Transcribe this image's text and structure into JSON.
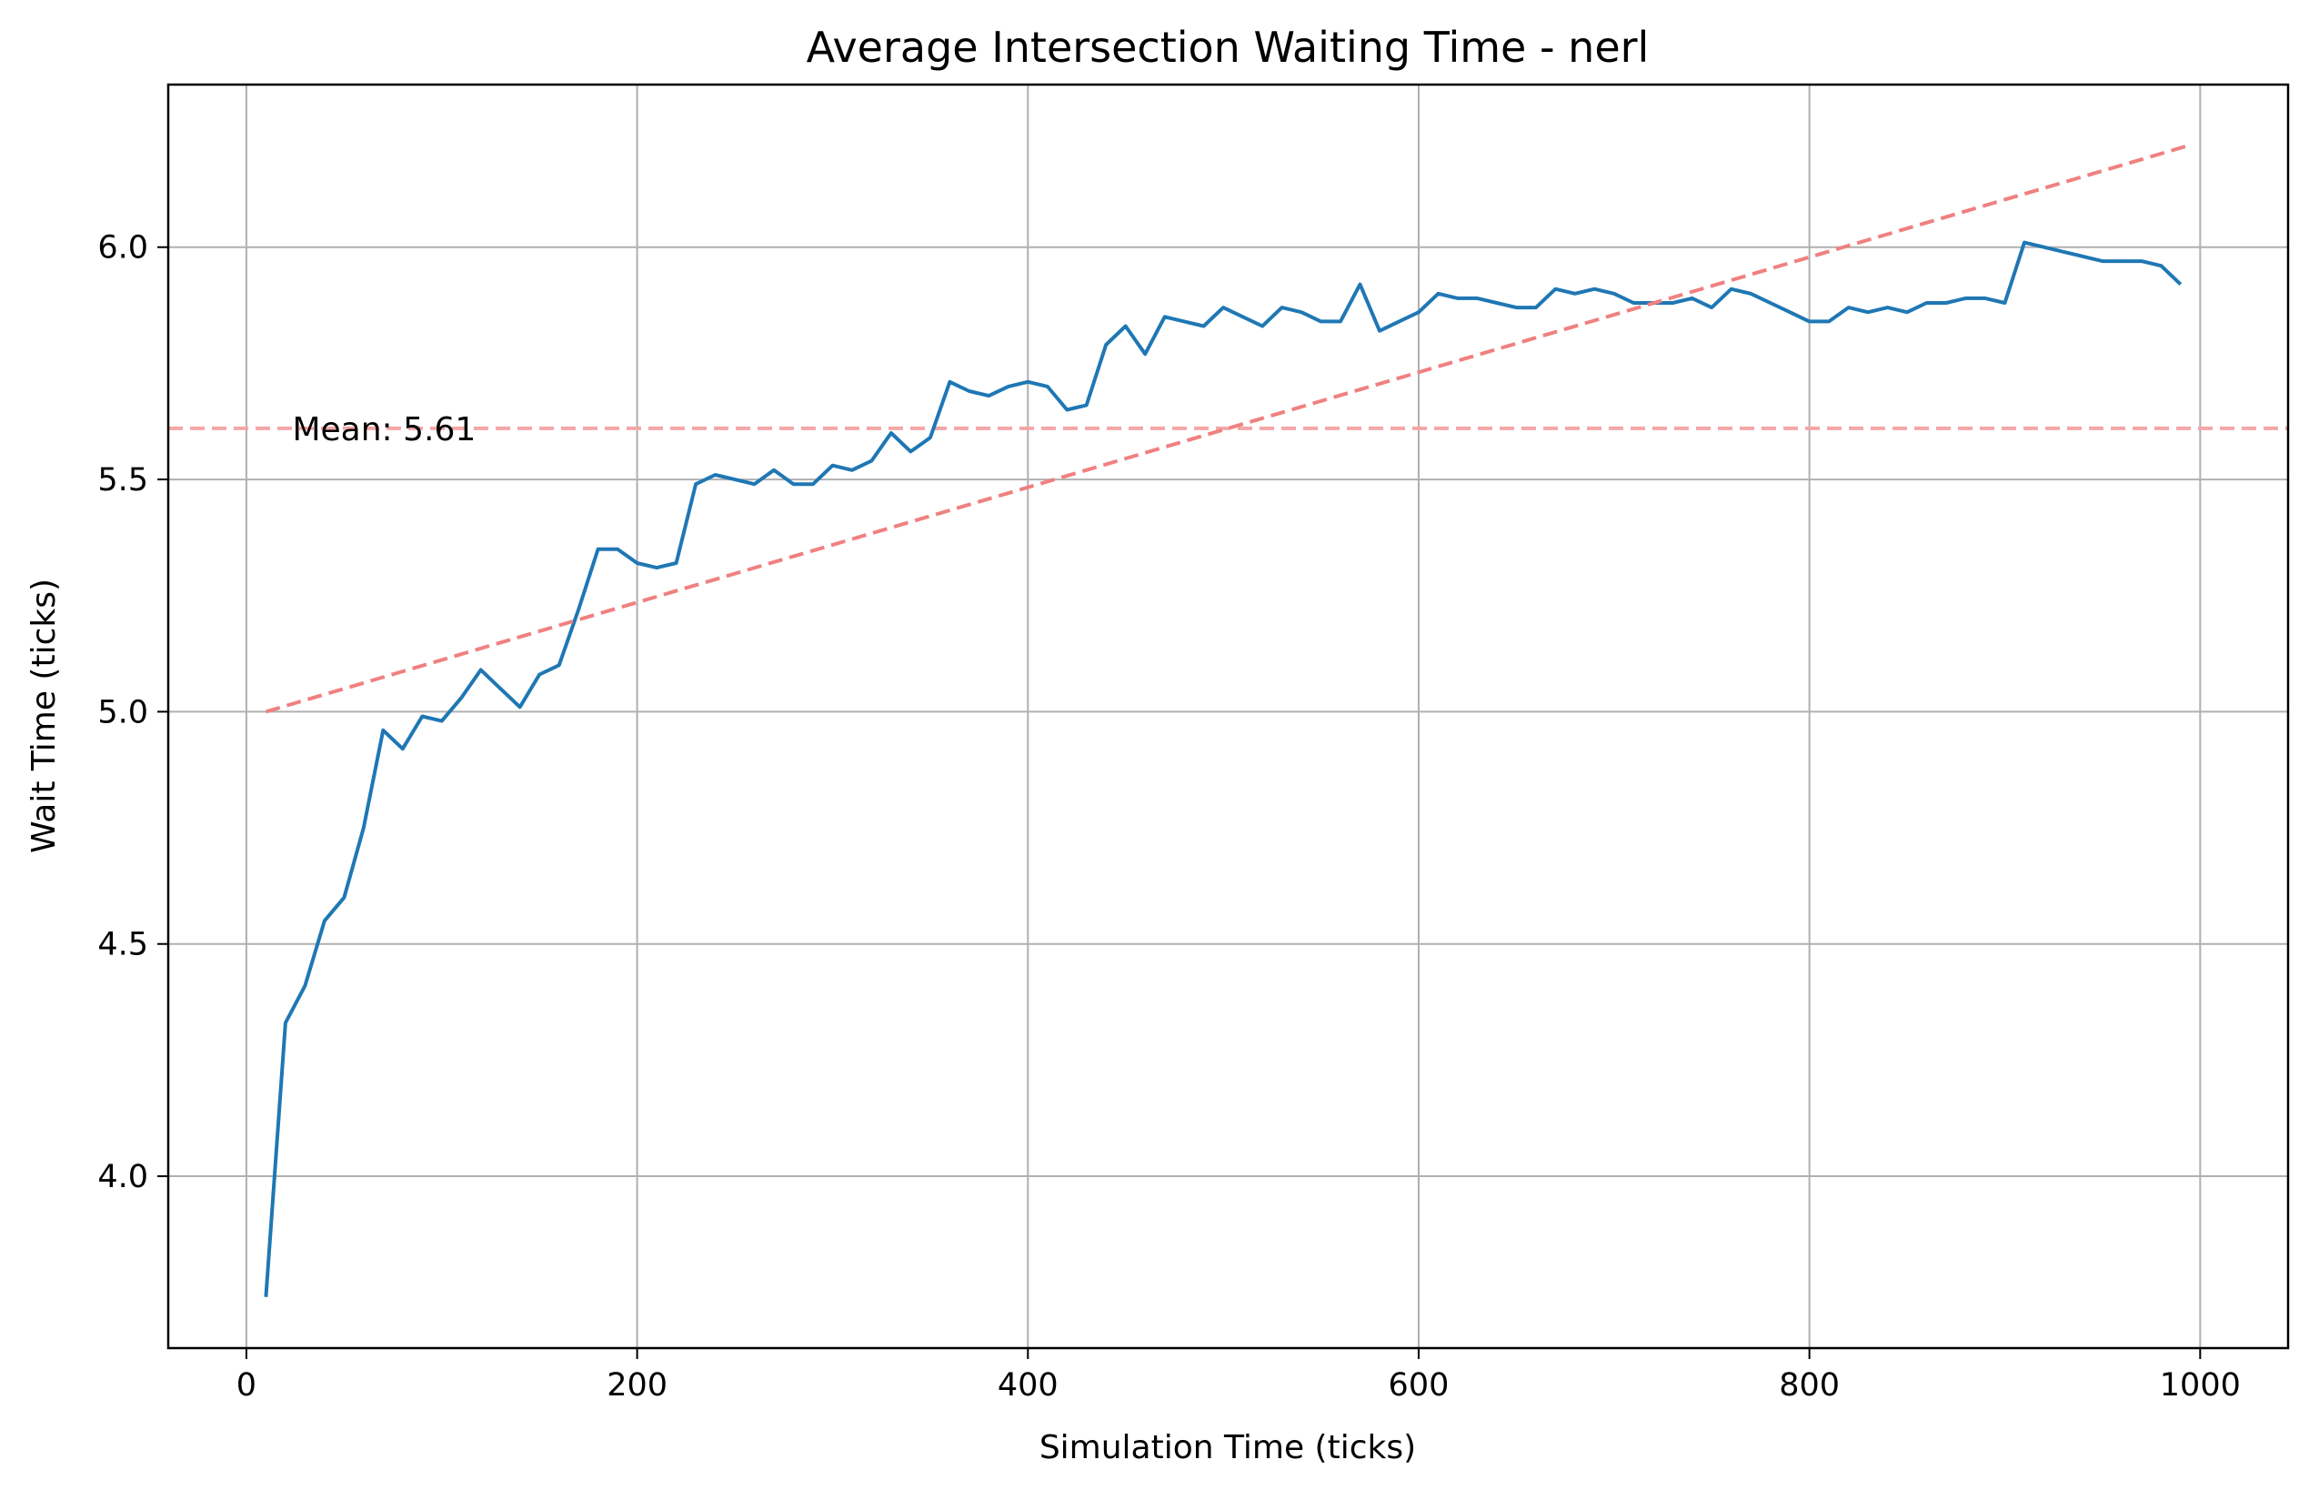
{
  "chart_data": {
    "type": "line",
    "title": "Average Intersection Waiting Time - nerl",
    "xlabel": "Simulation Time (ticks)",
    "ylabel": "Wait Time (ticks)",
    "xlim": [
      -40,
      1045
    ],
    "ylim": [
      3.63,
      6.35
    ],
    "xticks": [
      0,
      200,
      400,
      600,
      800,
      1000
    ],
    "xtick_labels": [
      "0",
      "200",
      "400",
      "600",
      "800",
      "1000"
    ],
    "yticks": [
      4.0,
      4.5,
      5.0,
      5.5,
      6.0
    ],
    "ytick_labels": [
      "4.0",
      "4.5",
      "5.0",
      "5.5",
      "6.0"
    ],
    "grid": true,
    "series": [
      {
        "color": "#1f77b4",
        "style": "solid",
        "x": [
          10,
          20,
          30,
          40,
          50,
          60,
          70,
          80,
          90,
          100,
          110,
          120,
          130,
          140,
          150,
          160,
          170,
          180,
          190,
          200,
          210,
          220,
          230,
          240,
          250,
          260,
          270,
          280,
          290,
          300,
          310,
          320,
          330,
          340,
          350,
          360,
          370,
          380,
          390,
          400,
          410,
          420,
          430,
          440,
          450,
          460,
          470,
          480,
          490,
          500,
          510,
          520,
          530,
          540,
          550,
          560,
          570,
          580,
          590,
          600,
          610,
          620,
          630,
          640,
          650,
          660,
          670,
          680,
          690,
          700,
          710,
          720,
          730,
          740,
          750,
          760,
          770,
          780,
          790,
          800,
          810,
          820,
          830,
          840,
          850,
          860,
          870,
          880,
          890,
          900,
          910,
          920,
          930,
          940,
          950,
          960,
          970,
          980,
          990
        ],
        "y": [
          3.74,
          4.33,
          4.41,
          4.55,
          4.6,
          4.75,
          4.96,
          4.92,
          4.99,
          4.98,
          5.03,
          5.09,
          5.05,
          5.01,
          5.08,
          5.1,
          5.22,
          5.35,
          5.35,
          5.32,
          5.31,
          5.32,
          5.49,
          5.51,
          5.5,
          5.49,
          5.52,
          5.49,
          5.49,
          5.53,
          5.52,
          5.54,
          5.6,
          5.56,
          5.59,
          5.71,
          5.69,
          5.68,
          5.7,
          5.71,
          5.7,
          5.65,
          5.66,
          5.79,
          5.83,
          5.77,
          5.85,
          5.84,
          5.83,
          5.87,
          5.85,
          5.83,
          5.87,
          5.86,
          5.84,
          5.84,
          5.92,
          5.82,
          5.84,
          5.86,
          5.9,
          5.89,
          5.89,
          5.88,
          5.87,
          5.87,
          5.91,
          5.9,
          5.91,
          5.9,
          5.88,
          5.88,
          5.88,
          5.89,
          5.87,
          5.91,
          5.9,
          5.88,
          5.86,
          5.84,
          5.84,
          5.87,
          5.86,
          5.87,
          5.86,
          5.88,
          5.88,
          5.89,
          5.89,
          5.88,
          6.01,
          6.0,
          5.99,
          5.98,
          5.97,
          5.97,
          5.97,
          5.96,
          5.92
        ]
      },
      {
        "color": "#f08080",
        "style": "dashed",
        "x": [
          10,
          995
        ],
        "y": [
          5.0,
          6.22
        ]
      }
    ],
    "hlines": [
      {
        "y": 5.61,
        "color": "#f4a7a7",
        "style": "dashed"
      }
    ],
    "annotations": [
      {
        "text": "Mean: 5.61",
        "x": 17,
        "y": 5.61
      }
    ]
  }
}
